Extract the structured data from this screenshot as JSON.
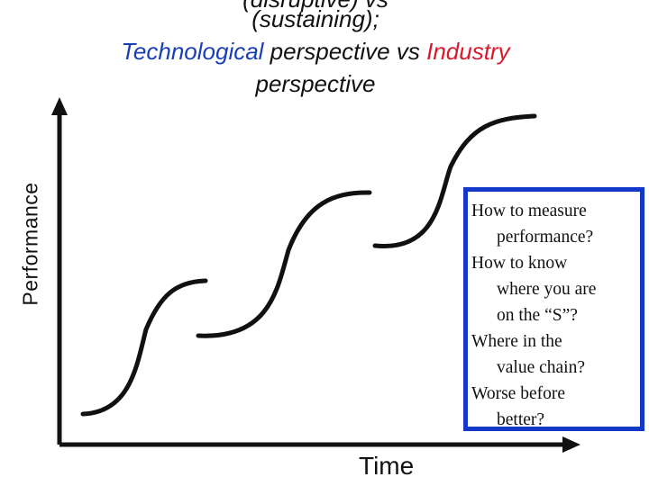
{
  "title": {
    "line0": "(disruptive) vs",
    "line1": "(sustaining);",
    "line2_tech": "Technological",
    "line2_mid": " perspective vs ",
    "line2_ind": "Industry",
    "line3": "perspective"
  },
  "axes": {
    "y_label": "Performance",
    "x_label": "Time"
  },
  "questions": [
    [
      "How to measure",
      "performance?"
    ],
    [
      "How to know",
      "where you are",
      "on the “S”?"
    ],
    [
      "Where in the",
      "value chain?"
    ],
    [
      "Worse before",
      "better?"
    ]
  ],
  "colors": {
    "technological": "#1a3fb5",
    "industry": "#d8192d",
    "box_border": "#1338c9",
    "ink": "#111111"
  }
}
